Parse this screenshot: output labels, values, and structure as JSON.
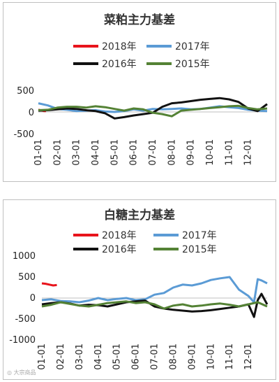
{
  "charts": [
    {
      "title": "菜粕主力基差",
      "legend": [
        "2018年",
        "2017年",
        "2016年",
        "2015年"
      ],
      "yticks": [
        "500",
        "0",
        "-500"
      ],
      "xticks": [
        "01-01",
        "02-01",
        "03-01",
        "04-01",
        "05-01",
        "06-01",
        "07-01",
        "08-01",
        "09-01",
        "10-01",
        "11-01",
        "12-01"
      ]
    },
    {
      "title": "白糖主力基差",
      "legend": [
        "2018年",
        "2017年",
        "2016年",
        "2015年"
      ],
      "yticks": [
        "1000",
        "500",
        "0",
        "-500",
        "-1000"
      ],
      "xticks": [
        "01-01",
        "02-01",
        "03-01",
        "04-01",
        "05-01",
        "06-01",
        "07-01",
        "08-01",
        "09-01",
        "10-01",
        "11-01",
        "12-01"
      ]
    }
  ],
  "colors": {
    "2018": "#e8141c",
    "2017": "#5b9bd5",
    "2016": "#111111",
    "2015": "#548235"
  },
  "chart_data": [
    {
      "type": "line",
      "title": "菜粕主力基差",
      "xlabel": "",
      "ylabel": "",
      "ylim": [
        -500,
        500
      ],
      "categories": [
        "01-01",
        "02-01",
        "03-01",
        "04-01",
        "05-01",
        "06-01",
        "07-01",
        "08-01",
        "09-01",
        "10-01",
        "11-01",
        "12-01"
      ],
      "x_unit": "month",
      "legend_position": "top",
      "grid": false,
      "series": [
        {
          "name": "2018年",
          "color": "#e8141c",
          "x": [
            0.0,
            0.1,
            0.2,
            0.3,
            0.4
          ],
          "y": [
            50,
            40,
            30,
            20,
            20
          ]
        },
        {
          "name": "2017年",
          "color": "#5b9bd5",
          "x": [
            0,
            0.5,
            1,
            1.5,
            2,
            2.5,
            3,
            3.5,
            4,
            4.5,
            5,
            5.5,
            6,
            6.5,
            7,
            7.5,
            8,
            8.5,
            9,
            9.5,
            10,
            10.5,
            11,
            11.5,
            12
          ],
          "y": [
            200,
            150,
            70,
            50,
            20,
            30,
            40,
            10,
            0,
            20,
            60,
            30,
            70,
            60,
            70,
            80,
            60,
            70,
            100,
            130,
            110,
            90,
            50,
            30,
            20
          ]
        },
        {
          "name": "2016年",
          "color": "#111111",
          "x": [
            0,
            0.5,
            1,
            1.5,
            2,
            2.5,
            3,
            3.5,
            4,
            4.5,
            5,
            5.5,
            6,
            6.5,
            7,
            7.5,
            8,
            8.5,
            9,
            9.5,
            10,
            10.5,
            11,
            11.5,
            12
          ],
          "y": [
            30,
            40,
            60,
            80,
            70,
            40,
            20,
            -30,
            -150,
            -120,
            -80,
            -50,
            -20,
            120,
            200,
            220,
            250,
            280,
            300,
            320,
            290,
            230,
            80,
            20,
            180
          ]
        },
        {
          "name": "2015年",
          "color": "#548235",
          "x": [
            0,
            0.5,
            1,
            1.5,
            2,
            2.5,
            3,
            3.5,
            4,
            4.5,
            5,
            5.5,
            6,
            6.5,
            7,
            7.5,
            8,
            8.5,
            9,
            9.5,
            10,
            10.5,
            11,
            11.5,
            12
          ],
          "y": [
            40,
            50,
            100,
            120,
            120,
            100,
            130,
            110,
            70,
            30,
            80,
            60,
            -20,
            -50,
            -100,
            30,
            50,
            70,
            90,
            110,
            130,
            140,
            90,
            60,
            80
          ]
        }
      ]
    },
    {
      "type": "line",
      "title": "白糖主力基差",
      "xlabel": "",
      "ylabel": "",
      "ylim": [
        -1000,
        1000
      ],
      "categories": [
        "01-01",
        "02-01",
        "03-01",
        "04-01",
        "05-01",
        "06-01",
        "07-01",
        "08-01",
        "09-01",
        "10-01",
        "11-01",
        "12-01"
      ],
      "x_unit": "month",
      "legend_position": "top",
      "grid": false,
      "series": [
        {
          "name": "2018年",
          "color": "#e8141c",
          "x": [
            0.0,
            0.2,
            0.4,
            0.6,
            0.8
          ],
          "y": [
            350,
            340,
            320,
            300,
            310
          ]
        },
        {
          "name": "2017年",
          "color": "#5b9bd5",
          "x": [
            0,
            0.5,
            1,
            1.5,
            2,
            2.5,
            3,
            3.5,
            4,
            4.5,
            5,
            5.5,
            6,
            6.5,
            7,
            7.5,
            8,
            8.5,
            9,
            9.5,
            10,
            10.5,
            11,
            11.3,
            11.5,
            11.7,
            12
          ],
          "y": [
            -50,
            -30,
            -70,
            -80,
            -100,
            -60,
            0,
            -50,
            -20,
            0,
            -50,
            -30,
            80,
            120,
            250,
            320,
            300,
            350,
            430,
            470,
            500,
            200,
            50,
            -100,
            450,
            420,
            350
          ]
        },
        {
          "name": "2016年",
          "color": "#111111",
          "x": [
            0,
            0.5,
            1,
            1.5,
            2,
            2.5,
            3,
            3.5,
            4,
            4.5,
            5,
            5.5,
            6,
            6.5,
            7,
            7.5,
            8,
            8.5,
            9,
            9.5,
            10,
            10.5,
            11,
            11.3,
            11.5,
            11.7,
            12
          ],
          "y": [
            -150,
            -120,
            -100,
            -130,
            -180,
            -160,
            -170,
            -200,
            -150,
            -100,
            -80,
            -60,
            -200,
            -250,
            -280,
            -300,
            -320,
            -310,
            -290,
            -260,
            -230,
            -200,
            -150,
            -450,
            -50,
            100,
            -150
          ]
        },
        {
          "name": "2015年",
          "color": "#548235",
          "x": [
            0,
            0.5,
            1,
            1.5,
            2,
            2.5,
            3,
            3.5,
            4,
            4.5,
            5,
            5.5,
            6,
            6.5,
            7,
            7.5,
            8,
            8.5,
            9,
            9.5,
            10,
            10.5,
            11,
            11.5,
            12
          ],
          "y": [
            -200,
            -160,
            -100,
            -140,
            -180,
            -200,
            -160,
            -120,
            -100,
            -80,
            -120,
            -100,
            -150,
            -250,
            -180,
            -150,
            -200,
            -180,
            -150,
            -130,
            -160,
            -200,
            -150,
            -100,
            -200
          ]
        }
      ]
    }
  ]
}
